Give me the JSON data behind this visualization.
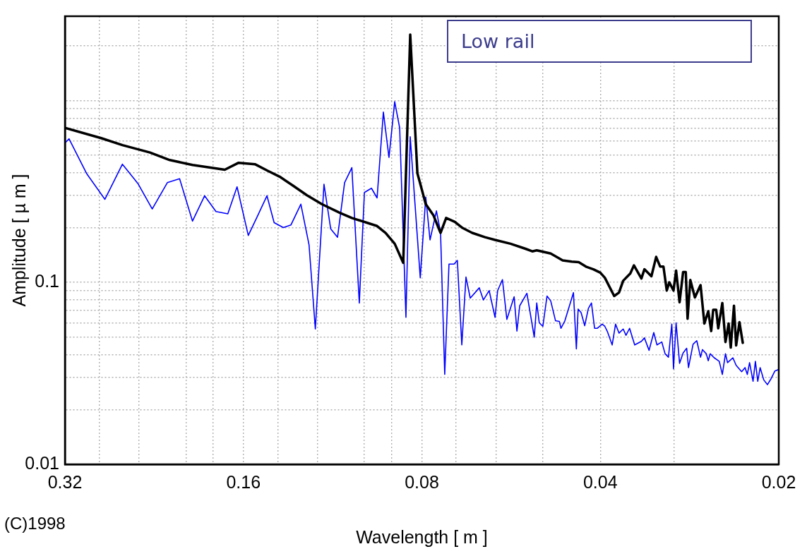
{
  "chart_data": {
    "type": "line",
    "xlabel": "Wavelength [ m ]",
    "ylabel": "Amplitude [ µ m ]",
    "log": "xy",
    "grid": true,
    "legend": false,
    "marker": "none",
    "line_style": "solid",
    "xlim": [
      0.32,
      0.02
    ],
    "ylim": [
      0.01,
      2.9
    ],
    "xticks": [
      0.32,
      {
        "value": 0.28,
        "label": null
      },
      {
        "value": 0.24,
        "label": null
      },
      {
        "value": 0.2,
        "label": null
      },
      {
        "value": 0.18,
        "label": null
      },
      0.16,
      {
        "value": 0.14,
        "label": null
      },
      {
        "value": 0.12,
        "label": null
      },
      {
        "value": 0.1,
        "label": null
      },
      {
        "value": 0.09,
        "label": null
      },
      0.08,
      {
        "value": 0.07,
        "label": null
      },
      {
        "value": 0.06,
        "label": null
      },
      {
        "value": 0.05,
        "label": null
      },
      0.04,
      {
        "value": 0.03,
        "label": null
      },
      0.02
    ],
    "yticks": [
      0.01,
      {
        "value": 0.02,
        "label": null
      },
      {
        "value": 0.03,
        "label": null
      },
      {
        "value": 0.04,
        "label": null
      },
      {
        "value": 0.05,
        "label": null
      },
      {
        "value": 0.06,
        "label": null
      },
      {
        "value": 0.07,
        "label": null
      },
      {
        "value": 0.08,
        "label": null
      },
      {
        "value": 0.09,
        "label": null
      },
      0.1,
      {
        "value": 0.2,
        "label": null
      },
      {
        "value": 0.3,
        "label": null
      },
      {
        "value": 0.4,
        "label": null
      },
      {
        "value": 0.5,
        "label": null
      },
      {
        "value": 0.6,
        "label": null
      },
      {
        "value": 0.7,
        "label": null
      },
      {
        "value": 0.8,
        "label": null
      },
      {
        "value": 0.9,
        "label": null
      },
      {
        "value": 1,
        "label": null
      },
      {
        "value": 2,
        "label": null
      }
    ],
    "annotations": [
      "Low rail",
      "(C)1998"
    ],
    "series": [
      {
        "color": "#000000",
        "x": [
          0.32,
          0.278,
          0.256,
          0.23,
          0.213,
          0.195,
          0.172,
          0.163,
          0.153,
          0.146,
          0.139,
          0.132,
          0.125,
          0.118,
          0.11,
          0.105,
          0.0952,
          0.0921,
          0.0889,
          0.086,
          0.0837,
          0.0814,
          0.0788,
          0.0765,
          0.0744,
          0.0728,
          0.0704,
          0.0683,
          0.0658,
          0.0626,
          0.0602,
          0.0567,
          0.0535,
          0.0521,
          0.0512,
          0.0485,
          0.0463,
          0.0447,
          0.0435,
          0.0423,
          0.0411,
          0.04,
          0.0393,
          0.0379,
          0.0372,
          0.0366,
          0.0356,
          0.0351,
          0.0341,
          0.0337,
          0.0328,
          0.0322,
          0.0317,
          0.0313,
          0.0309,
          0.0306,
          0.0301,
          0.0298,
          0.0294,
          0.029,
          0.0287,
          0.0285,
          0.0282,
          0.0277,
          0.0271,
          0.0267,
          0.0263,
          0.026,
          0.0258,
          0.0255,
          0.0253,
          0.0249,
          0.0246,
          0.0243,
          0.0241,
          0.0238,
          0.0236,
          0.0233,
          0.023
        ],
        "values": [
          0.706,
          0.62,
          0.568,
          0.517,
          0.47,
          0.442,
          0.416,
          0.454,
          0.446,
          0.412,
          0.381,
          0.34,
          0.301,
          0.269,
          0.241,
          0.226,
          0.204,
          0.187,
          0.163,
          0.128,
          2.3,
          0.398,
          0.269,
          0.234,
          0.187,
          0.226,
          0.215,
          0.199,
          0.187,
          0.177,
          0.171,
          0.163,
          0.153,
          0.148,
          0.15,
          0.144,
          0.132,
          0.13,
          0.129,
          0.122,
          0.118,
          0.113,
          0.106,
          0.0841,
          0.0878,
          0.102,
          0.112,
          0.124,
          0.105,
          0.118,
          0.108,
          0.138,
          0.122,
          0.122,
          0.0901,
          0.1,
          0.0901,
          0.116,
          0.0777,
          0.114,
          0.114,
          0.0631,
          0.103,
          0.0826,
          0.0966,
          0.0594,
          0.0694,
          0.054,
          0.0707,
          0.0707,
          0.0559,
          0.077,
          0.047,
          0.0594,
          0.0438,
          0.0744,
          0.045,
          0.0604,
          0.0465
        ]
      },
      {
        "color": "#0000ff",
        "x": [
          0.32,
          0.315,
          0.294,
          0.274,
          0.256,
          0.241,
          0.228,
          0.215,
          0.205,
          0.195,
          0.186,
          0.178,
          0.17,
          0.164,
          0.157,
          0.152,
          0.146,
          0.142,
          0.137,
          0.133,
          0.128,
          0.124,
          0.121,
          0.117,
          0.114,
          0.111,
          0.108,
          0.105,
          0.102,
          0.1,
          0.0973,
          0.0952,
          0.0929,
          0.0909,
          0.0889,
          0.0872,
          0.0851,
          0.0837,
          0.0805,
          0.0788,
          0.0775,
          0.0756,
          0.0744,
          0.0732,
          0.072,
          0.0706,
          0.0697,
          0.0685,
          0.0674,
          0.0663,
          0.064,
          0.063,
          0.0616,
          0.0602,
          0.0596,
          0.0585,
          0.0575,
          0.0559,
          0.0553,
          0.0547,
          0.0532,
          0.0517,
          0.0512,
          0.0507,
          0.05,
          0.0492,
          0.0485,
          0.0476,
          0.0469,
          0.0466,
          0.0459,
          0.0444,
          0.0439,
          0.0436,
          0.0431,
          0.0425,
          0.0419,
          0.0414,
          0.0409,
          0.0405,
          0.0397,
          0.0393,
          0.0389,
          0.0382,
          0.0377,
          0.0372,
          0.0366,
          0.0362,
          0.0357,
          0.035,
          0.0341,
          0.0337,
          0.0331,
          0.0325,
          0.0321,
          0.0315,
          0.0311,
          0.0307,
          0.0303,
          0.0301,
          0.0298,
          0.0294,
          0.029,
          0.0286,
          0.0284,
          0.0279,
          0.0275,
          0.0271,
          0.0269,
          0.0265,
          0.0263,
          0.0261,
          0.0257,
          0.0252,
          0.0249,
          0.0246,
          0.0244,
          0.0239,
          0.0236,
          0.0231,
          0.0228,
          0.0226,
          0.0224,
          0.0221,
          0.0219,
          0.0217,
          0.0215,
          0.0212,
          0.0209,
          0.0206,
          0.0203,
          0.02
        ],
        "values": [
          0.583,
          0.615,
          0.395,
          0.286,
          0.446,
          0.349,
          0.253,
          0.353,
          0.371,
          0.217,
          0.299,
          0.245,
          0.238,
          0.335,
          0.181,
          0.226,
          0.299,
          0.213,
          0.2,
          0.207,
          0.269,
          0.161,
          0.0554,
          0.346,
          0.197,
          0.177,
          0.353,
          0.427,
          0.077,
          0.312,
          0.329,
          0.291,
          0.862,
          0.486,
          0.983,
          0.706,
          0.0642,
          0.631,
          0.106,
          0.294,
          0.171,
          0.247,
          0.189,
          0.0312,
          0.126,
          0.126,
          0.132,
          0.0453,
          0.107,
          0.0819,
          0.0933,
          0.08,
          0.0901,
          0.0642,
          0.0901,
          0.1035,
          0.0626,
          0.0833,
          0.054,
          0.0744,
          0.087,
          0.05,
          0.077,
          0.0599,
          0.0573,
          0.0841,
          0.0791,
          0.0615,
          0.061,
          0.0559,
          0.0615,
          0.0878,
          0.0431,
          0.0713,
          0.0682,
          0.0578,
          0.0719,
          0.077,
          0.0559,
          0.0559,
          0.0589,
          0.0573,
          0.0535,
          0.0453,
          0.0589,
          0.0526,
          0.0554,
          0.0512,
          0.0559,
          0.0453,
          0.0474,
          0.0495,
          0.0423,
          0.053,
          0.0453,
          0.047,
          0.0405,
          0.0388,
          0.0589,
          0.0335,
          0.0599,
          0.0359,
          0.0409,
          0.0434,
          0.034,
          0.0457,
          0.0478,
          0.0388,
          0.0427,
          0.0405,
          0.0371,
          0.0405,
          0.0385,
          0.0368,
          0.0312,
          0.0405,
          0.0362,
          0.0385,
          0.035,
          0.0323,
          0.034,
          0.0312,
          0.0362,
          0.0286,
          0.0368,
          0.0286,
          0.034,
          0.0291,
          0.0274,
          0.0296,
          0.0326,
          0.0332
        ]
      }
    ]
  }
}
